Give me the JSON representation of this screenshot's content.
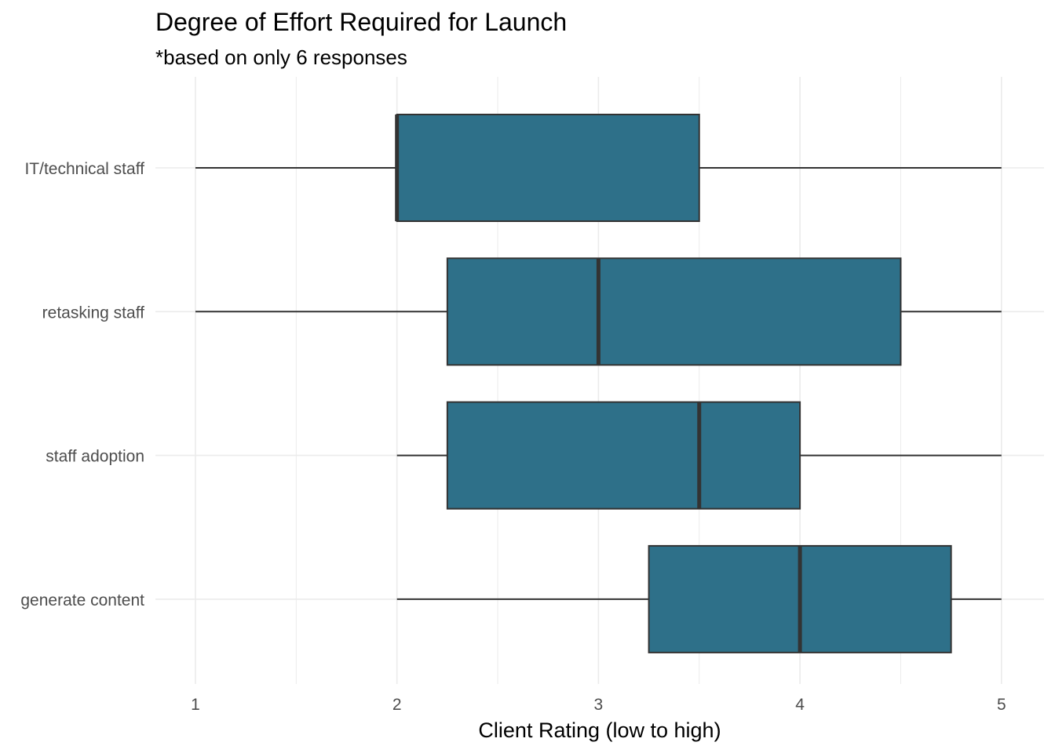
{
  "chart_data": {
    "type": "boxplot",
    "orientation": "horizontal",
    "title": "Degree of Effort Required for Launch",
    "subtitle": "*based on only 6 responses",
    "xlabel": "Client Rating (low to high)",
    "ylabel": "",
    "xlim": [
      0.86,
      5.21
    ],
    "x_ticks": [
      1,
      2,
      3,
      4,
      5
    ],
    "x_tick_labels": [
      "1",
      "2",
      "3",
      "4",
      "5"
    ],
    "grid": true,
    "legend": "none",
    "box_fill": "#2e7089",
    "box_stroke": "#333333",
    "grid_color": "#ebebeb",
    "categories": [
      "IT/technical staff",
      "retasking staff",
      "staff adoption",
      "generate content"
    ],
    "boxes": [
      {
        "category": "IT/technical staff",
        "min": 1,
        "q1": 2,
        "median": 2,
        "q3": 3.5,
        "max": 5
      },
      {
        "category": "retasking staff",
        "min": 1,
        "q1": 2.25,
        "median": 3,
        "q3": 4.5,
        "max": 5
      },
      {
        "category": "staff adoption",
        "min": 2,
        "q1": 2.25,
        "median": 3.5,
        "q3": 4,
        "max": 5
      },
      {
        "category": "generate content",
        "min": 2,
        "q1": 3.25,
        "median": 4,
        "q3": 4.75,
        "max": 5
      }
    ]
  }
}
